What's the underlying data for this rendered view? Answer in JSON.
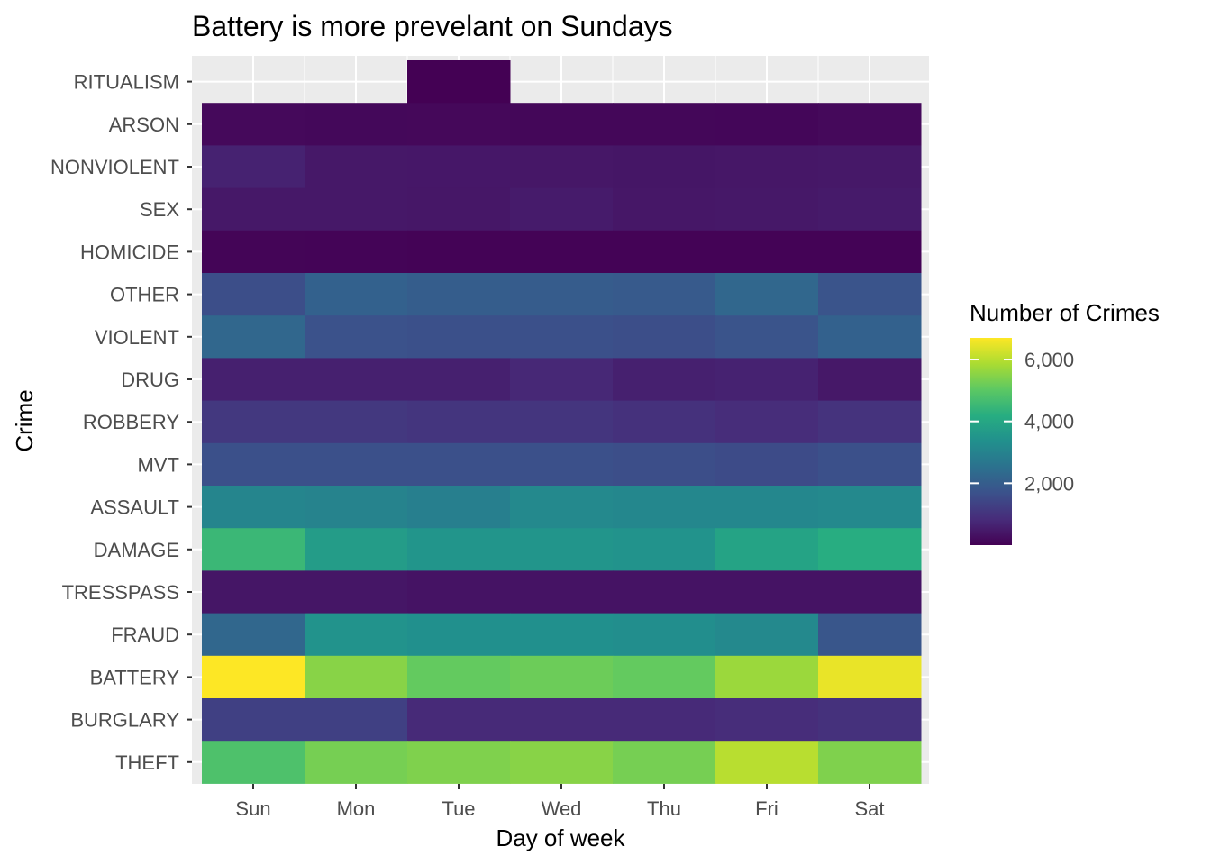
{
  "chart_data": {
    "type": "heatmap",
    "title": "Battery is more prevelant on Sundays",
    "xlabel": "Day of week",
    "ylabel": "Crime",
    "x_categories": [
      "Sun",
      "Mon",
      "Tue",
      "Wed",
      "Thu",
      "Fri",
      "Sat"
    ],
    "y_categories": [
      "RITUALISM",
      "ARSON",
      "NONVIOLENT",
      "SEX",
      "HOMICIDE",
      "OTHER",
      "VIOLENT",
      "DRUG",
      "ROBBERY",
      "MVT",
      "ASSAULT",
      "DAMAGE",
      "TRESSPASS",
      "FRAUD",
      "BATTERY",
      "BURGLARY",
      "THEFT"
    ],
    "values": [
      [
        null,
        null,
        5,
        null,
        null,
        null,
        null
      ],
      [
        150,
        130,
        140,
        120,
        110,
        100,
        150
      ],
      [
        650,
        450,
        430,
        420,
        400,
        420,
        450
      ],
      [
        450,
        450,
        420,
        500,
        420,
        450,
        480
      ],
      [
        70,
        60,
        40,
        40,
        40,
        40,
        40
      ],
      [
        1600,
        2100,
        2000,
        1950,
        1900,
        2250,
        1750
      ],
      [
        2250,
        1700,
        1650,
        1650,
        1600,
        1750,
        2100
      ],
      [
        600,
        600,
        600,
        750,
        600,
        650,
        450
      ],
      [
        1100,
        1100,
        1050,
        1050,
        950,
        850,
        1000
      ],
      [
        1650,
        1650,
        1650,
        1650,
        1600,
        1550,
        1650
      ],
      [
        3050,
        3000,
        2900,
        3150,
        3100,
        3100,
        3150
      ],
      [
        4500,
        3700,
        3500,
        3500,
        3450,
        3900,
        4200
      ],
      [
        400,
        400,
        350,
        350,
        350,
        350,
        350
      ],
      [
        2250,
        3450,
        3350,
        3350,
        3300,
        3150,
        1800
      ],
      [
        6700,
        5500,
        5100,
        5200,
        5100,
        5700,
        6500
      ],
      [
        1300,
        1300,
        800,
        800,
        800,
        850,
        950
      ],
      [
        4800,
        5300,
        5400,
        5500,
        5300,
        6000,
        5400
      ]
    ],
    "legend": {
      "title": "Number of Crimes",
      "ticks": [
        2000,
        4000,
        6000
      ],
      "tick_labels": [
        "2,000",
        "4,000",
        "6,000"
      ],
      "min": 0,
      "max": 6700
    },
    "grid": true,
    "legend_position": "right",
    "colormap": "viridis"
  }
}
